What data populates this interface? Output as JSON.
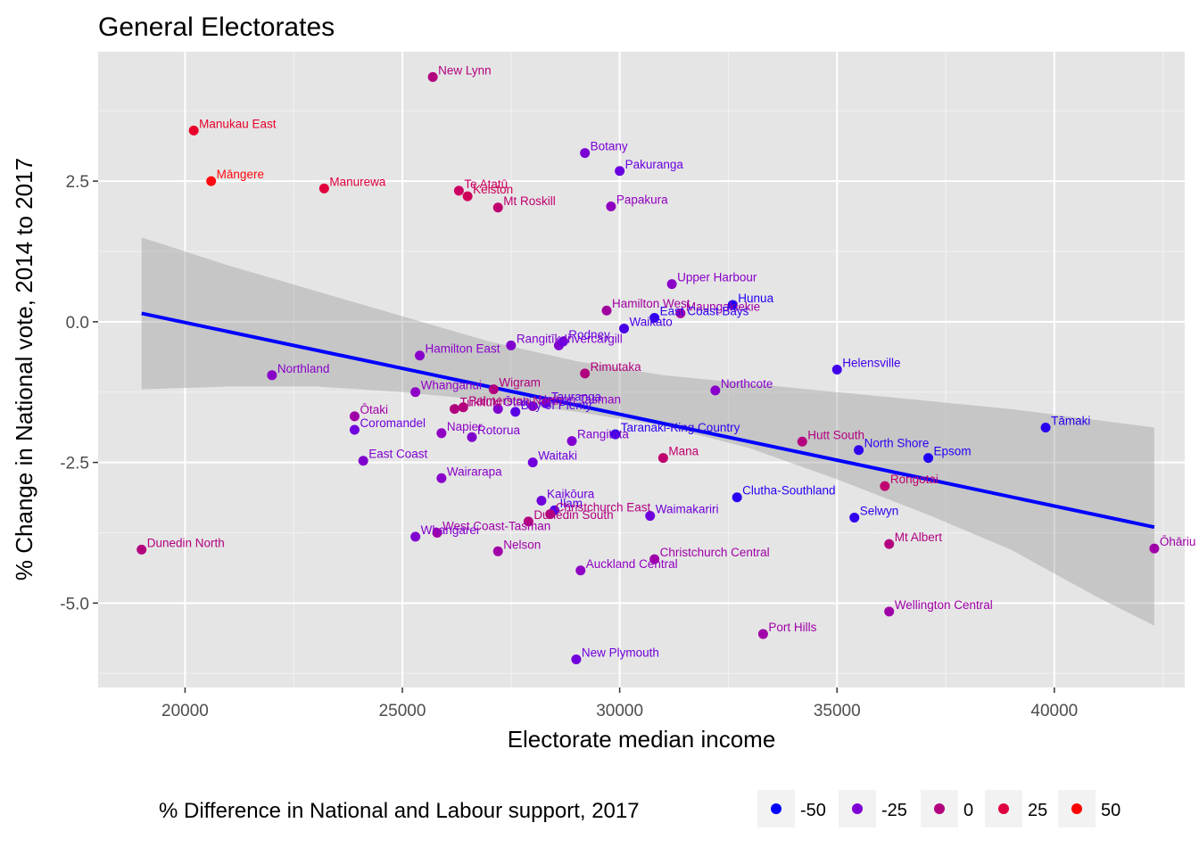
{
  "chart_data": {
    "type": "scatter",
    "title": "General Electorates",
    "xlabel": "Electorate median income",
    "ylabel": "% Change in National vote, 2014 to 2017",
    "xlim": [
      18000,
      43000
    ],
    "ylim": [
      -6.5,
      4.8
    ],
    "x_ticks": [
      20000,
      25000,
      30000,
      35000,
      40000
    ],
    "x_tick_labels": [
      "20000",
      "25000",
      "30000",
      "35000",
      "40000"
    ],
    "y_ticks": [
      2.5,
      0,
      -2.5,
      -5
    ],
    "y_tick_labels": [
      "2.5",
      "0.0",
      "-2.5",
      "-5.0"
    ],
    "grid": true,
    "background": "#e5e5e5",
    "legend": {
      "title": "% Difference in National and Labour support, 2017",
      "position": "bottom",
      "items": [
        {
          "label": "-50",
          "color": "#0000ff"
        },
        {
          "label": "-25",
          "color": "#7f00d4"
        },
        {
          "label": "0",
          "color": "#b2007f"
        },
        {
          "label": "25",
          "color": "#e00040"
        },
        {
          "label": "50",
          "color": "#ff0000"
        }
      ]
    },
    "trend_line": {
      "x": [
        19000,
        42300
      ],
      "y": [
        0.15,
        -3.65
      ],
      "color": "#0000ff"
    },
    "confidence_band": {
      "x": [
        19000,
        21000,
        23000,
        25000,
        27000,
        29000,
        31000,
        33000,
        35000,
        37000,
        39000,
        41000,
        42300
      ],
      "upper": [
        1.5,
        1.0,
        0.55,
        0.1,
        -0.35,
        -0.7,
        -0.95,
        -1.1,
        -1.25,
        -1.4,
        -1.55,
        -1.75,
        -1.88
      ],
      "lower": [
        -1.2,
        -1.15,
        -1.15,
        -1.25,
        -1.4,
        -1.6,
        -1.85,
        -2.25,
        -2.8,
        -3.4,
        -4.05,
        -4.9,
        -5.4
      ],
      "color": "#999999"
    },
    "points": [
      {
        "label": "New Lynn",
        "x": 25700,
        "y": 4.35,
        "color": "#b2007f"
      },
      {
        "label": "Manukau East",
        "x": 20200,
        "y": 3.4,
        "color": "#e8002a"
      },
      {
        "label": "Māngere",
        "x": 20600,
        "y": 2.5,
        "color": "#ff0a10"
      },
      {
        "label": "Manurewa",
        "x": 23200,
        "y": 2.37,
        "color": "#e0003c"
      },
      {
        "label": "Te Atatū",
        "x": 26300,
        "y": 2.33,
        "color": "#cc0060"
      },
      {
        "label": "Kelston",
        "x": 26500,
        "y": 2.23,
        "color": "#d00058"
      },
      {
        "label": "Mt Roskill",
        "x": 27200,
        "y": 2.03,
        "color": "#c00070"
      },
      {
        "label": "Botany",
        "x": 29200,
        "y": 3.0,
        "color": "#7a00d6"
      },
      {
        "label": "Pakuranga",
        "x": 30000,
        "y": 2.68,
        "color": "#6a00e0"
      },
      {
        "label": "Papakura",
        "x": 29800,
        "y": 2.05,
        "color": "#9000c0"
      },
      {
        "label": "Upper Harbour",
        "x": 31200,
        "y": 0.67,
        "color": "#8a00c8"
      },
      {
        "label": "Hunua",
        "x": 32600,
        "y": 0.3,
        "color": "#2000f5"
      },
      {
        "label": "Maungakiekie",
        "x": 31400,
        "y": 0.15,
        "color": "#a000a8"
      },
      {
        "label": "East Coast Bays",
        "x": 30800,
        "y": 0.07,
        "color": "#3000ef"
      },
      {
        "label": "Hamilton West",
        "x": 29700,
        "y": 0.2,
        "color": "#a0009e"
      },
      {
        "label": "Waikato",
        "x": 30100,
        "y": -0.12,
        "color": "#4800e6"
      },
      {
        "label": "Rangitīkei",
        "x": 27500,
        "y": -0.42,
        "color": "#8000d0"
      },
      {
        "label": "Invercargill",
        "x": 28600,
        "y": -0.42,
        "color": "#8000d0"
      },
      {
        "label": "Rodney",
        "x": 28700,
        "y": -0.35,
        "color": "#6a00e0"
      },
      {
        "label": "Hamilton East",
        "x": 25400,
        "y": -0.6,
        "color": "#8800ca"
      },
      {
        "label": "Northland",
        "x": 22000,
        "y": -0.95,
        "color": "#8800ca"
      },
      {
        "label": "Rimutaka",
        "x": 29200,
        "y": -0.92,
        "color": "#b0007e"
      },
      {
        "label": "Helensville",
        "x": 35000,
        "y": -0.85,
        "color": "#4000ea"
      },
      {
        "label": "Northcote",
        "x": 32200,
        "y": -1.22,
        "color": "#8800ca"
      },
      {
        "label": "Whanganui",
        "x": 25300,
        "y": -1.25,
        "color": "#9000c4"
      },
      {
        "label": "Wigram",
        "x": 27100,
        "y": -1.2,
        "color": "#b0007e"
      },
      {
        "label": "Tukituki",
        "x": 26200,
        "y": -1.55,
        "color": "#b0007e"
      },
      {
        "label": "Palmerston North",
        "x": 26400,
        "y": -1.52,
        "color": "#b4007a"
      },
      {
        "label": "Ōtaki",
        "x": 27200,
        "y": -1.55,
        "color": "#8000d0"
      },
      {
        "label": "Nelson Tasman",
        "x": 28000,
        "y": -1.5,
        "color": "#9000c4"
      },
      {
        "label": "Tauranga",
        "x": 28300,
        "y": -1.45,
        "color": "#6000e4"
      },
      {
        "label": "Bay of Plenty",
        "x": 27600,
        "y": -1.6,
        "color": "#5800e6"
      },
      {
        "label": "Ōtaki",
        "x": 23900,
        "y": -1.68,
        "color": "#a000a8"
      },
      {
        "label": "Coromandel",
        "x": 23900,
        "y": -1.92,
        "color": "#7000dc"
      },
      {
        "label": "Napier",
        "x": 25900,
        "y": -1.98,
        "color": "#9000c4"
      },
      {
        "label": "Rotorua",
        "x": 26600,
        "y": -2.05,
        "color": "#8000d0"
      },
      {
        "label": "Rangitata",
        "x": 28900,
        "y": -2.12,
        "color": "#8000d0"
      },
      {
        "label": "Taranaki-King Country",
        "x": 29900,
        "y": -2.0,
        "color": "#3000ef"
      },
      {
        "label": "Mana",
        "x": 31000,
        "y": -2.42,
        "color": "#c00070"
      },
      {
        "label": "Hutt South",
        "x": 34200,
        "y": -2.13,
        "color": "#b2007f"
      },
      {
        "label": "North Shore",
        "x": 35500,
        "y": -2.28,
        "color": "#3000ef"
      },
      {
        "label": "Epsom",
        "x": 37100,
        "y": -2.42,
        "color": "#2000f5"
      },
      {
        "label": "Tāmaki",
        "x": 39800,
        "y": -1.88,
        "color": "#2800f0"
      },
      {
        "label": "East Coast",
        "x": 24100,
        "y": -2.47,
        "color": "#8000d0"
      },
      {
        "label": "Waitaki",
        "x": 28000,
        "y": -2.5,
        "color": "#7000dc"
      },
      {
        "label": "Wairarapa",
        "x": 25900,
        "y": -2.78,
        "color": "#8800ca"
      },
      {
        "label": "Rongotai",
        "x": 36100,
        "y": -2.92,
        "color": "#c00070"
      },
      {
        "label": "Clutha-Southland",
        "x": 32700,
        "y": -3.12,
        "color": "#2800f0"
      },
      {
        "label": "Kaikōura",
        "x": 28200,
        "y": -3.18,
        "color": "#7000dc"
      },
      {
        "label": "Ilam",
        "x": 28500,
        "y": -3.35,
        "color": "#5800e6"
      },
      {
        "label": "Christchurch East",
        "x": 28400,
        "y": -3.42,
        "color": "#b2007f"
      },
      {
        "label": "Dunedin South",
        "x": 27900,
        "y": -3.55,
        "color": "#b2007f"
      },
      {
        "label": "Waimakariri",
        "x": 30700,
        "y": -3.45,
        "color": "#7000dc"
      },
      {
        "label": "Selwyn",
        "x": 35400,
        "y": -3.48,
        "color": "#3000ef"
      },
      {
        "label": "West Coast-Tasman",
        "x": 25800,
        "y": -3.75,
        "color": "#a000a8"
      },
      {
        "label": "Whangarei",
        "x": 25300,
        "y": -3.82,
        "color": "#8000d0"
      },
      {
        "label": "Dunedin North",
        "x": 19000,
        "y": -4.05,
        "color": "#b2007f"
      },
      {
        "label": "Nelson",
        "x": 27200,
        "y": -4.08,
        "color": "#a000a8"
      },
      {
        "label": "Mt Albert",
        "x": 36200,
        "y": -3.95,
        "color": "#b2007f"
      },
      {
        "label": "Ōhāriu",
        "x": 42300,
        "y": -4.03,
        "color": "#a000a8"
      },
      {
        "label": "Christchurch Central",
        "x": 30800,
        "y": -4.22,
        "color": "#a000a8"
      },
      {
        "label": "Auckland Central",
        "x": 29100,
        "y": -4.42,
        "color": "#9000c4"
      },
      {
        "label": "Wellington Central",
        "x": 36200,
        "y": -5.15,
        "color": "#a000a8"
      },
      {
        "label": "Port Hills",
        "x": 33300,
        "y": -5.55,
        "color": "#a000a8"
      },
      {
        "label": "New Plymouth",
        "x": 29000,
        "y": -6.0,
        "color": "#7000dc"
      }
    ]
  }
}
